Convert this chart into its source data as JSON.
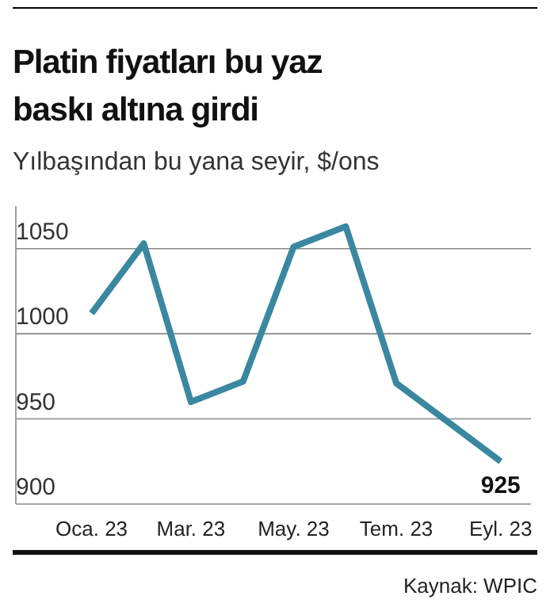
{
  "chart_data": {
    "type": "line",
    "title": "Platin fiyatları bu yaz baskı altına girdi",
    "subtitle": "Yılbaşından bu yana seyir, $/ons",
    "x": [
      "2023-01",
      "2023-02",
      "2023-03",
      "2023-04",
      "2023-05",
      "2023-06",
      "2023-07",
      "2023-09"
    ],
    "series": [
      {
        "color": "#3a87a0",
        "values": [
          1012,
          1053,
          960,
          972,
          1051,
          1063,
          971,
          925
        ],
        "value_labels": [
          null,
          null,
          null,
          null,
          null,
          null,
          null,
          "925"
        ]
      }
    ],
    "xlim": [
      "2022-11-17",
      "2023-09-19"
    ],
    "xticks": [
      {
        "value": "2023-01",
        "label": "Oca. 23"
      },
      {
        "value": "2023-03",
        "label": "Mar. 23"
      },
      {
        "value": "2023-05",
        "label": "May. 23"
      },
      {
        "value": "2023-07",
        "label": "Tem. 23"
      },
      {
        "value": "2023-09",
        "label": "Eyl. 23"
      }
    ],
    "ylim": [
      900,
      1075
    ],
    "yticks": [
      900,
      950,
      1000,
      1050
    ],
    "grid": "y",
    "marker": "none",
    "line_style": "solid",
    "annotations": [
      "Kaynak: WPIC"
    ]
  }
}
